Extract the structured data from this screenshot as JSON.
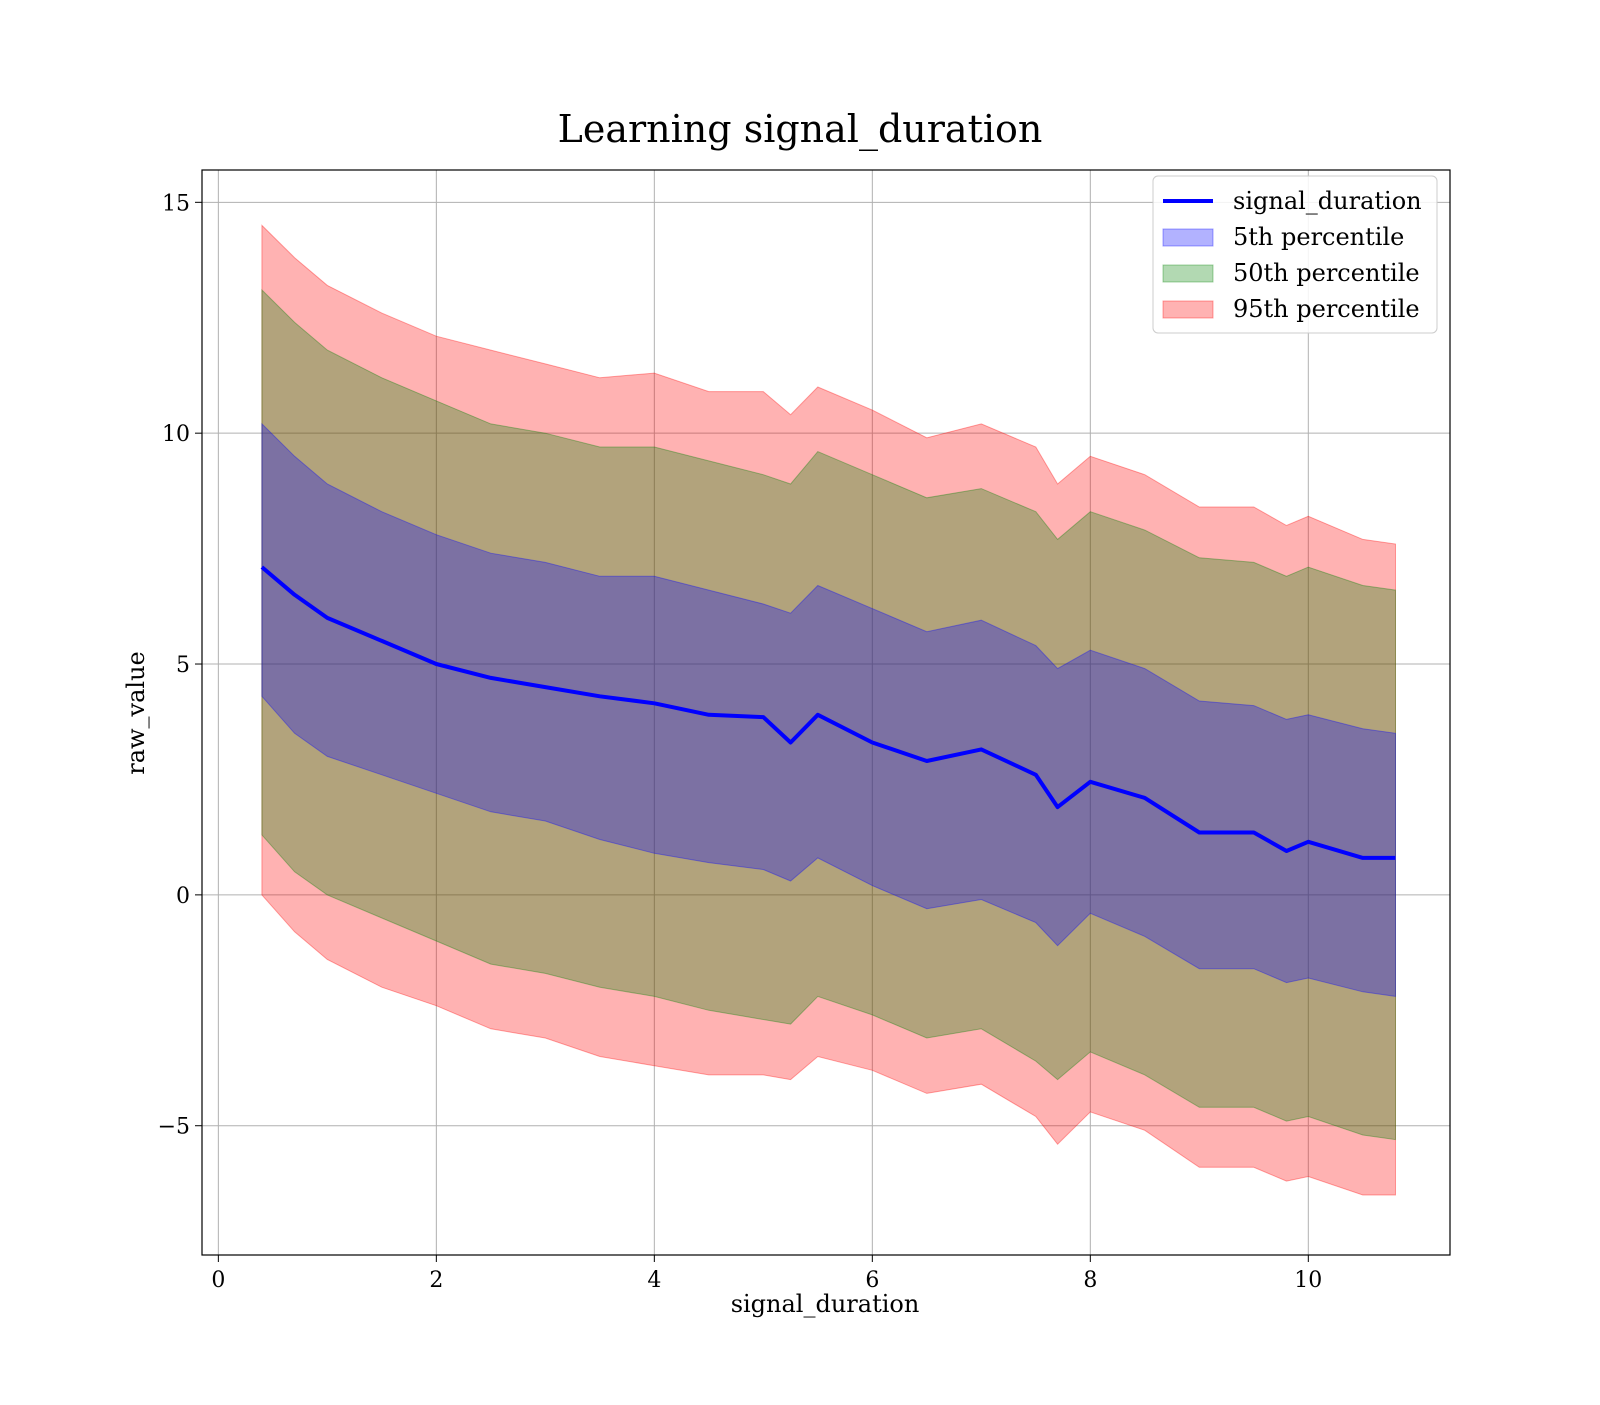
{
  "chart_data": {
    "type": "area",
    "title": "Learning signal_duration",
    "xlabel": "signal_duration",
    "ylabel": "raw_value",
    "xlim": [
      -0.15,
      11.3
    ],
    "ylim": [
      -7.8,
      15.7
    ],
    "xticks": [
      0,
      2,
      4,
      6,
      8,
      10
    ],
    "yticks": [
      -5,
      0,
      5,
      10,
      15
    ],
    "xtick_labels": [
      "0",
      "2",
      "4",
      "6",
      "8",
      "10"
    ],
    "ytick_labels": [
      "−5",
      "0",
      "5",
      "10",
      "15"
    ],
    "grid": true,
    "legend_position": "top-right",
    "colors": {
      "line": "#0000ff",
      "band_5": "#0000ff",
      "band_50": "#008000",
      "band_95": "#ff0000"
    },
    "legend": [
      {
        "label": "signal_duration",
        "kind": "line",
        "color": "#0000ff"
      },
      {
        "label": "5th percentile",
        "kind": "band",
        "color": "#0000ff"
      },
      {
        "label": "50th percentile",
        "kind": "band",
        "color": "#008000"
      },
      {
        "label": "95th percentile",
        "kind": "band",
        "color": "#ff0000"
      }
    ],
    "x": [
      0.4,
      0.7,
      1.0,
      1.5,
      2.0,
      2.5,
      3.0,
      3.5,
      4.0,
      4.5,
      5.0,
      5.25,
      5.5,
      6.0,
      6.5,
      7.0,
      7.5,
      7.7,
      8.0,
      8.5,
      9.0,
      9.5,
      9.8,
      10.0,
      10.5,
      10.8
    ],
    "series": [
      {
        "name": "signal_duration",
        "values": [
          7.1,
          6.5,
          6.0,
          5.5,
          5.0,
          4.7,
          4.5,
          4.3,
          4.15,
          3.9,
          3.85,
          3.3,
          3.9,
          3.3,
          2.9,
          3.15,
          2.6,
          1.9,
          2.45,
          2.1,
          1.35,
          1.35,
          0.95,
          1.15,
          0.8,
          0.8
        ]
      },
      {
        "name": "5th percentile",
        "lower": [
          4.3,
          3.5,
          3.0,
          2.6,
          2.2,
          1.8,
          1.6,
          1.2,
          0.9,
          0.7,
          0.55,
          0.3,
          0.8,
          0.2,
          -0.3,
          -0.1,
          -0.6,
          -1.1,
          -0.4,
          -0.9,
          -1.6,
          -1.6,
          -1.9,
          -1.8,
          -2.1,
          -2.2
        ],
        "upper": [
          10.2,
          9.5,
          8.9,
          8.3,
          7.8,
          7.4,
          7.2,
          6.9,
          6.9,
          6.6,
          6.3,
          6.1,
          6.7,
          6.2,
          5.7,
          5.95,
          5.4,
          4.9,
          5.3,
          4.9,
          4.2,
          4.1,
          3.8,
          3.9,
          3.6,
          3.5
        ]
      },
      {
        "name": "50th percentile",
        "lower": [
          1.3,
          0.5,
          0.0,
          -0.5,
          -1.0,
          -1.5,
          -1.7,
          -2.0,
          -2.2,
          -2.5,
          -2.7,
          -2.8,
          -2.2,
          -2.6,
          -3.1,
          -2.9,
          -3.6,
          -4.0,
          -3.4,
          -3.9,
          -4.6,
          -4.6,
          -4.9,
          -4.8,
          -5.2,
          -5.3
        ],
        "upper": [
          13.1,
          12.4,
          11.8,
          11.2,
          10.7,
          10.2,
          10.0,
          9.7,
          9.7,
          9.4,
          9.1,
          8.9,
          9.6,
          9.1,
          8.6,
          8.8,
          8.3,
          7.7,
          8.3,
          7.9,
          7.3,
          7.2,
          6.9,
          7.1,
          6.7,
          6.6
        ]
      },
      {
        "name": "95th percentile",
        "lower": [
          0.0,
          -0.8,
          -1.4,
          -2.0,
          -2.4,
          -2.9,
          -3.1,
          -3.5,
          -3.7,
          -3.9,
          -3.9,
          -4.0,
          -3.5,
          -3.8,
          -4.3,
          -4.1,
          -4.8,
          -5.4,
          -4.7,
          -5.1,
          -5.9,
          -5.9,
          -6.2,
          -6.1,
          -6.5,
          -6.5
        ],
        "upper": [
          14.5,
          13.8,
          13.2,
          12.6,
          12.1,
          11.8,
          11.5,
          11.2,
          11.3,
          10.9,
          10.9,
          10.4,
          11.0,
          10.5,
          9.9,
          10.2,
          9.7,
          8.9,
          9.5,
          9.1,
          8.4,
          8.4,
          8.0,
          8.2,
          7.7,
          7.6
        ]
      }
    ]
  }
}
